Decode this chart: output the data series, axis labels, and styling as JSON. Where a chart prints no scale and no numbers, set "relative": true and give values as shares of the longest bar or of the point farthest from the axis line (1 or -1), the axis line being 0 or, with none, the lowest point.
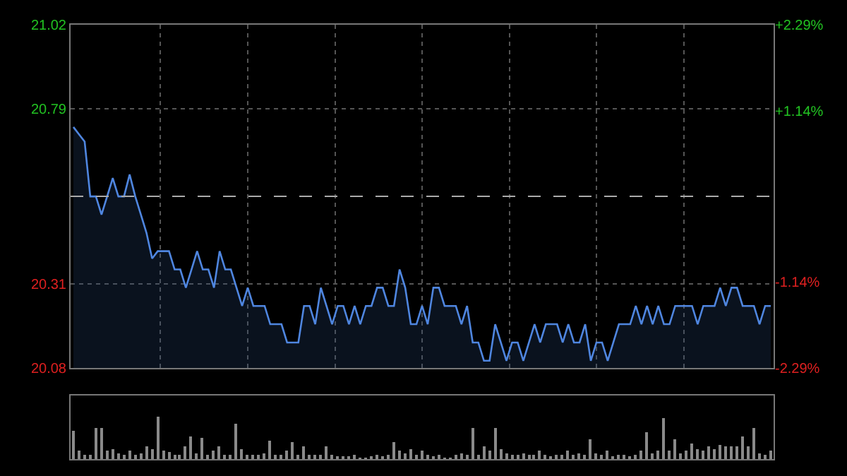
{
  "chart_data": [
    {
      "type": "area",
      "categories": [
        null,
        null,
        null,
        null,
        null,
        null,
        null,
        null,
        null,
        null,
        null,
        null,
        null,
        null,
        null,
        null,
        null,
        null,
        null,
        null,
        null,
        null,
        null,
        null,
        null,
        null,
        null,
        null,
        null,
        null,
        null,
        null,
        null,
        null,
        null,
        null,
        null,
        null,
        null,
        null,
        null,
        null,
        null,
        null,
        null,
        null,
        null,
        null,
        null,
        null,
        null,
        null,
        null,
        null,
        null,
        null,
        null,
        null,
        null,
        null,
        null,
        null,
        null,
        null,
        null,
        null,
        null,
        null,
        null,
        null,
        null,
        null,
        null,
        null,
        null,
        null,
        null,
        null,
        null,
        null,
        null,
        null,
        null,
        null,
        null,
        null,
        null,
        null,
        null,
        null,
        null,
        null,
        null,
        null,
        null,
        null,
        null,
        null,
        null,
        null,
        null,
        null,
        null,
        null,
        null,
        null,
        null,
        null,
        null,
        null,
        null,
        null,
        null,
        null,
        null,
        null,
        null,
        null,
        null,
        null,
        null,
        null,
        null,
        null,
        null
      ],
      "series": [
        {
          "color": "#4f86e0",
          "values": [
            20.74,
            20.72,
            20.7,
            20.55,
            20.55,
            20.5,
            20.55,
            20.6,
            20.55,
            20.55,
            20.61,
            20.55,
            20.5,
            20.45,
            20.38,
            20.4,
            20.4,
            20.4,
            20.35,
            20.35,
            20.3,
            20.35,
            20.4,
            20.35,
            20.35,
            20.3,
            20.4,
            20.35,
            20.35,
            20.3,
            20.25,
            20.3,
            20.25,
            20.25,
            20.25,
            20.2,
            20.2,
            20.2,
            20.15,
            20.15,
            20.15,
            20.25,
            20.25,
            20.2,
            20.3,
            20.25,
            20.2,
            20.25,
            20.25,
            20.2,
            20.25,
            20.2,
            20.25,
            20.25,
            20.3,
            20.3,
            20.25,
            20.25,
            20.35,
            20.3,
            20.2,
            20.2,
            20.25,
            20.2,
            20.3,
            20.3,
            20.25,
            20.25,
            20.25,
            20.2,
            20.25,
            20.15,
            20.15,
            20.1,
            20.1,
            20.2,
            20.15,
            20.1,
            20.15,
            20.15,
            20.1,
            20.15,
            20.2,
            20.15,
            20.2,
            20.2,
            20.2,
            20.15,
            20.2,
            20.15,
            20.15,
            20.2,
            20.1,
            20.15,
            20.15,
            20.1,
            20.15,
            20.2,
            20.2,
            20.2,
            20.25,
            20.2,
            20.25,
            20.2,
            20.25,
            20.2,
            20.2,
            20.25,
            20.25,
            20.25,
            20.25,
            20.2,
            20.25,
            20.25,
            20.25,
            20.3,
            20.25,
            20.3,
            20.3,
            20.25,
            20.25,
            20.25,
            20.2,
            20.25,
            20.25
          ]
        }
      ],
      "ylim": [
        20.08,
        21.02
      ],
      "yticks": [
        20.08,
        20.31,
        20.79,
        21.02
      ],
      "y2lim": [
        -2.29,
        2.29
      ],
      "y2ticks": [
        {
          "value": -2.29,
          "label": "-2.29%"
        },
        {
          "value": -1.14,
          "label": "-1.14%"
        },
        {
          "value": 1.14,
          "label": "+1.14%"
        },
        {
          "value": 2.29,
          "label": "+2.29%"
        }
      ],
      "ref_lines": [
        {
          "axis": "y",
          "value": 20.55,
          "color": "#aaaaaa",
          "line_style": "dashed"
        }
      ],
      "grid": true,
      "tick_labels": "y",
      "line_style": "solid"
    },
    {
      "type": "bar",
      "relative": true,
      "categories": [
        null,
        null,
        null,
        null,
        null,
        null,
        null,
        null,
        null,
        null,
        null,
        null,
        null,
        null,
        null,
        null,
        null,
        null,
        null,
        null,
        null,
        null,
        null,
        null,
        null,
        null,
        null,
        null,
        null,
        null,
        null,
        null,
        null,
        null,
        null,
        null,
        null,
        null,
        null,
        null,
        null,
        null,
        null,
        null,
        null,
        null,
        null,
        null,
        null,
        null,
        null,
        null,
        null,
        null,
        null,
        null,
        null,
        null,
        null,
        null,
        null,
        null,
        null,
        null,
        null,
        null,
        null,
        null,
        null,
        null,
        null,
        null,
        null,
        null,
        null,
        null,
        null,
        null,
        null,
        null,
        null,
        null,
        null,
        null,
        null,
        null,
        null,
        null,
        null,
        null,
        null,
        null,
        null,
        null,
        null,
        null,
        null,
        null,
        null,
        null,
        null,
        null,
        null,
        null,
        null,
        null,
        null,
        null,
        null,
        null,
        null,
        null,
        null,
        null,
        null,
        null,
        null,
        null,
        null,
        null,
        null,
        null,
        null,
        null,
        null
      ],
      "color": "#8a8a8a",
      "values": [
        0.68,
        0.2,
        0.12,
        0.1,
        0.73,
        0.73,
        0.2,
        0.25,
        0.15,
        0.12,
        0.2,
        0.1,
        0.15,
        0.3,
        0.25,
        1.0,
        0.2,
        0.18,
        0.1,
        0.12,
        0.3,
        0.55,
        0.15,
        0.5,
        0.12,
        0.2,
        0.3,
        0.1,
        0.1,
        0.83,
        0.25,
        0.12,
        0.1,
        0.1,
        0.15,
        0.43,
        0.12,
        0.1,
        0.2,
        0.4,
        0.1,
        0.3,
        0.12,
        0.1,
        0.12,
        0.3,
        0.1,
        0.08,
        0.08,
        0.08,
        0.1,
        0.06,
        0.06,
        0.08,
        0.12,
        0.08,
        0.1,
        0.4,
        0.2,
        0.15,
        0.25,
        0.12,
        0.2,
        0.1,
        0.08,
        0.1,
        0.06,
        0.06,
        0.1,
        0.15,
        0.12,
        0.73,
        0.12,
        0.3,
        0.2,
        0.73,
        0.25,
        0.15,
        0.12,
        0.1,
        0.15,
        0.1,
        0.12,
        0.2,
        0.1,
        0.08,
        0.1,
        0.1,
        0.2,
        0.12,
        0.15,
        0.1,
        0.46,
        0.15,
        0.1,
        0.2,
        0.08,
        0.1,
        0.12,
        0.08,
        0.1,
        0.2,
        0.65,
        0.15,
        0.2,
        0.97,
        0.2,
        0.46,
        0.15,
        0.2,
        0.37,
        0.25,
        0.2,
        0.3,
        0.25,
        0.35,
        0.3,
        0.32,
        0.3,
        0.54,
        0.3,
        0.75,
        0.15,
        0.1,
        0.2
      ],
      "grid": false,
      "tick_labels": false
    }
  ]
}
